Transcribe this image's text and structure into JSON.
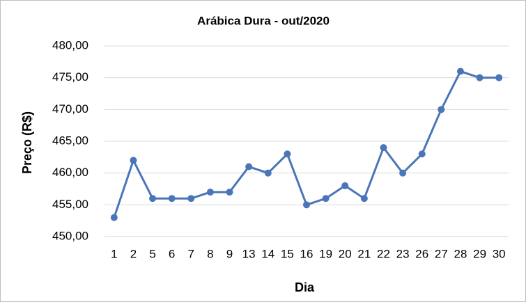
{
  "chart_data": {
    "type": "line",
    "title": "Arábica Dura - out/2020",
    "x_label": "Dia",
    "y_label": "Preço (R$)",
    "categories": [
      "1",
      "2",
      "5",
      "6",
      "7",
      "8",
      "9",
      "13",
      "14",
      "15",
      "16",
      "19",
      "20",
      "21",
      "22",
      "23",
      "26",
      "27",
      "28",
      "29",
      "30"
    ],
    "series": [
      {
        "name": "Arábica Dura",
        "color": "#4a76b8",
        "values": [
          453,
          462,
          456,
          456,
          456,
          457,
          457,
          461,
          460,
          463,
          455,
          456,
          458,
          456,
          464,
          460,
          463,
          470,
          476,
          475,
          475
        ]
      }
    ],
    "ylim": [
      450,
      480
    ],
    "yticks": [
      {
        "value": 450,
        "label": "450,00"
      },
      {
        "value": 455,
        "label": "455,00"
      },
      {
        "value": 460,
        "label": "460,00"
      },
      {
        "value": 465,
        "label": "465,00"
      },
      {
        "value": 470,
        "label": "470,00"
      },
      {
        "value": 475,
        "label": "475,00"
      },
      {
        "value": 480,
        "label": "480,00"
      }
    ],
    "grid": true
  }
}
